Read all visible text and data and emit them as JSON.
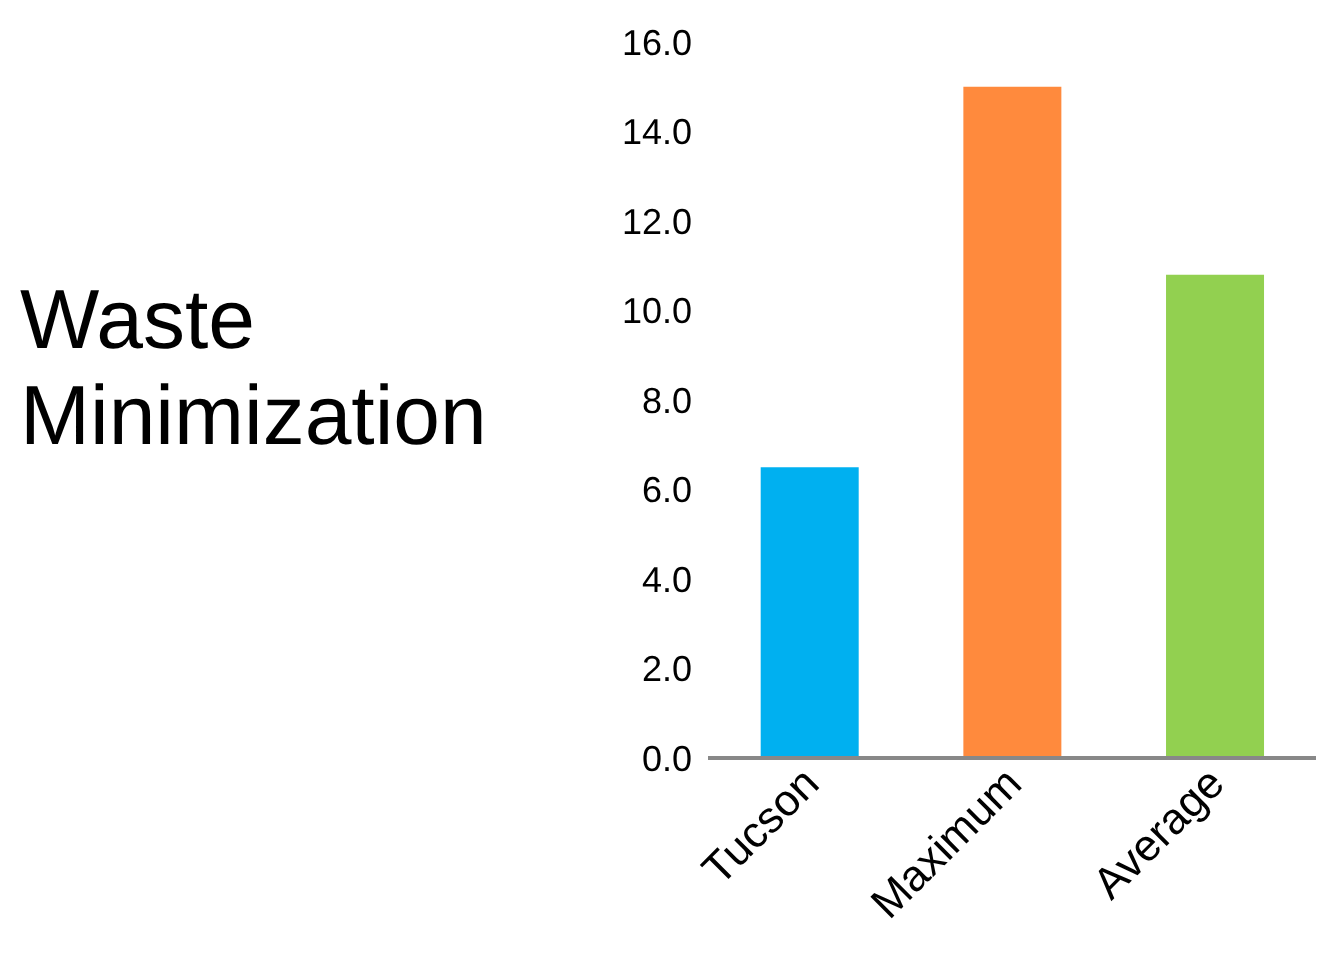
{
  "chart_data": {
    "type": "bar",
    "ylabel": "Waste Minimization",
    "categories": [
      "Tucson",
      "Maximum",
      "Average"
    ],
    "values": [
      6.5,
      15.0,
      10.8
    ],
    "colors": [
      "#00b0f0",
      "#ff8a3d",
      "#92d050"
    ],
    "ylim": [
      0,
      16
    ],
    "yticks": [
      {
        "value": 0,
        "label": "0.0"
      },
      {
        "value": 2,
        "label": "2.0"
      },
      {
        "value": 4,
        "label": "4.0"
      },
      {
        "value": 6,
        "label": "6.0"
      },
      {
        "value": 8,
        "label": "8.0"
      },
      {
        "value": 10,
        "label": "10.0"
      },
      {
        "value": 12,
        "label": "12.0"
      },
      {
        "value": 14,
        "label": "14.0"
      },
      {
        "value": 16,
        "label": "16.0"
      }
    ],
    "grid": false,
    "legend": false
  }
}
